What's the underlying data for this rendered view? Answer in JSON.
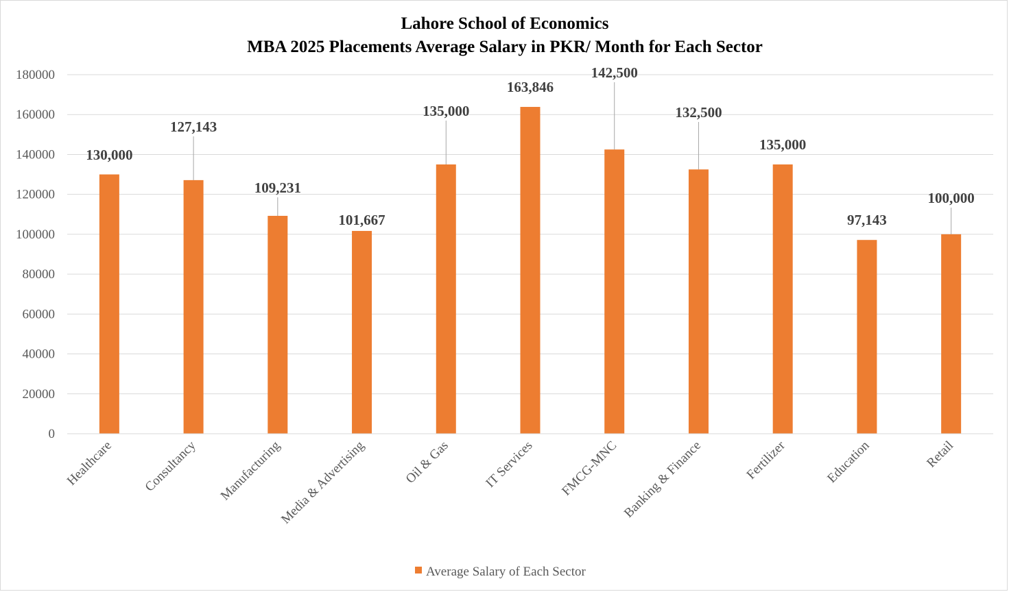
{
  "chart_data": {
    "type": "bar",
    "title": "Lahore School of Economics",
    "subtitle": "MBA 2025 Placements Average Salary in PKR/ Month for Each Sector",
    "categories": [
      "Healthcare",
      "Consultancy",
      "Manufacturing",
      "Media & Advertising",
      "Oil & Gas",
      "IT Services",
      "FMCG-MNC",
      "Banking & Finance",
      "Fertilizer",
      "Education",
      "Retail"
    ],
    "series": [
      {
        "name": "Average Salary of Each Sector",
        "values": [
          130000,
          127143,
          109231,
          101667,
          135000,
          163846,
          142500,
          132500,
          135000,
          97143,
          100000
        ],
        "data_labels": [
          "130,000",
          "127,143",
          "109,231",
          "101,667",
          "135,000",
          "163,846",
          "142,500",
          "132,500",
          "135,000",
          "97,143",
          "100,000"
        ]
      }
    ],
    "y_ticks": [
      "0",
      "20000",
      "40000",
      "60000",
      "80000",
      "100000",
      "120000",
      "140000",
      "160000",
      "180000"
    ],
    "xlabel": "",
    "ylabel": "",
    "ylim": [
      0,
      180000
    ],
    "grid": true,
    "legend_position": "bottom",
    "bar_color": "#ed7d31",
    "grid_color": "#d9d9d9",
    "leader_line_color": "#a6a6a6"
  }
}
